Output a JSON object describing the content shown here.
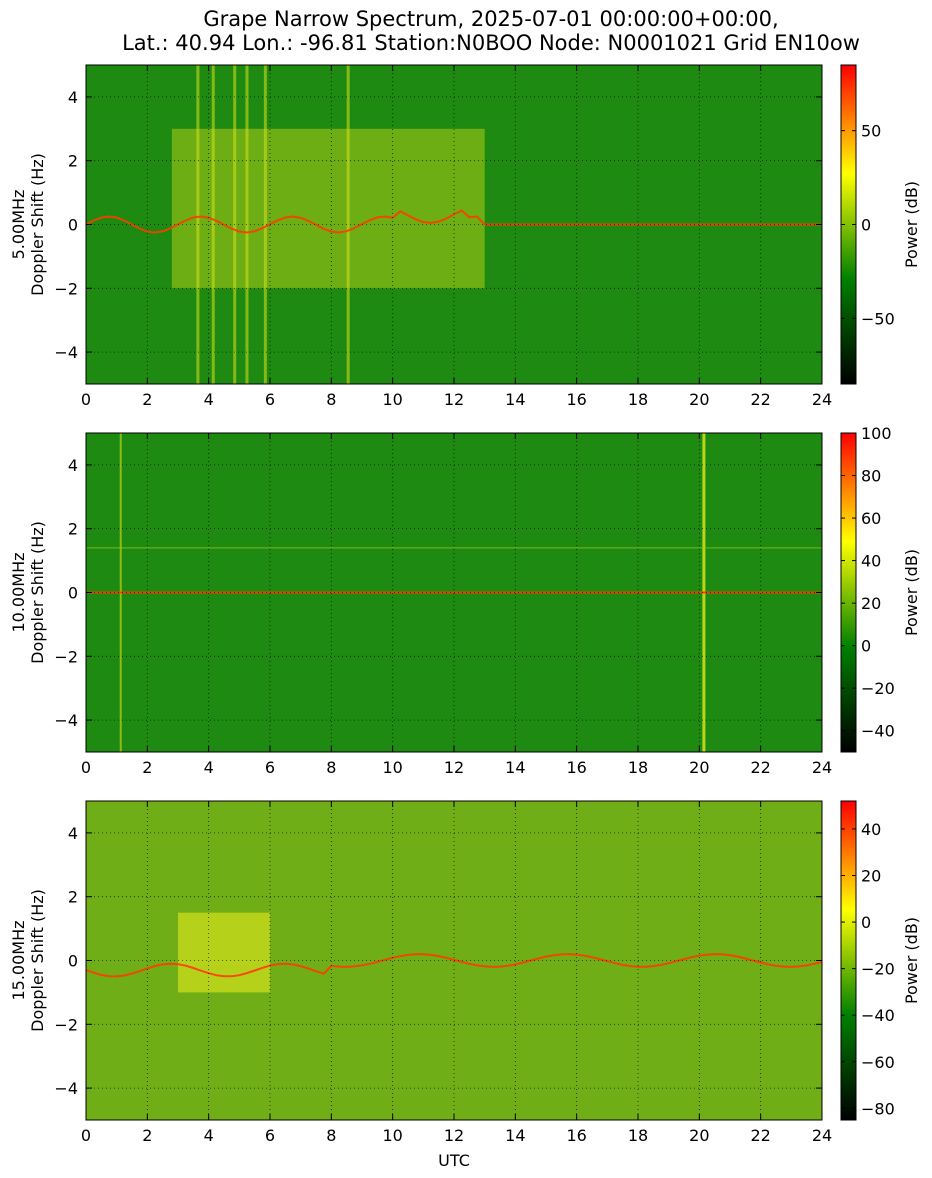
{
  "figure": {
    "title_line1": "Grape Narrow Spectrum, 2025-07-01 00:00:00+00:00,",
    "title_line2": "Lat.: 40.94 Lon.: -96.81 Station:N0BOO Node: N0001021 Grid EN10ow",
    "xlabel": "UTC",
    "colormap": [
      "#000000",
      "#008000",
      "#ffff00",
      "#ff0000"
    ]
  },
  "chart_data": [
    {
      "type": "heatmap",
      "frequency_label": "5.00MHz",
      "ylabel": "Doppler Shift (Hz)",
      "colorbar_label": "Power (dB)",
      "xlim": [
        0,
        24
      ],
      "ylim": [
        -5,
        5
      ],
      "x_ticks": [
        0,
        2,
        4,
        6,
        8,
        10,
        12,
        14,
        16,
        18,
        20,
        22,
        24
      ],
      "y_ticks": [
        -4,
        -2,
        0,
        2,
        4
      ],
      "color_range": [
        -85,
        85
      ],
      "colorbar_ticks": [
        -50,
        0,
        50
      ],
      "x_ticks_label": [
        "0",
        "2",
        "4",
        "6",
        "8",
        "10",
        "12",
        "14",
        "16",
        "18",
        "20",
        "22",
        "24"
      ],
      "y_ticks_label": [
        "−4",
        "−2",
        "0",
        "2",
        "4"
      ],
      "colorbar_ticks_label": [
        "−50",
        "0",
        "50"
      ],
      "grid": true
    },
    {
      "type": "heatmap",
      "frequency_label": "10.00MHz",
      "ylabel": "Doppler Shift (Hz)",
      "colorbar_label": "Power (dB)",
      "xlim": [
        0,
        24
      ],
      "ylim": [
        -5,
        5
      ],
      "x_ticks": [
        0,
        2,
        4,
        6,
        8,
        10,
        12,
        14,
        16,
        18,
        20,
        22,
        24
      ],
      "y_ticks": [
        -4,
        -2,
        0,
        2,
        4
      ],
      "color_range": [
        -50,
        100
      ],
      "colorbar_ticks": [
        -40,
        -20,
        0,
        20,
        40,
        60,
        80,
        100
      ],
      "x_ticks_label": [
        "0",
        "2",
        "4",
        "6",
        "8",
        "10",
        "12",
        "14",
        "16",
        "18",
        "20",
        "22",
        "24"
      ],
      "y_ticks_label": [
        "−4",
        "−2",
        "0",
        "2",
        "4"
      ],
      "colorbar_ticks_label": [
        "−40",
        "−20",
        "0",
        "20",
        "40",
        "60",
        "80",
        "100"
      ],
      "grid": true
    },
    {
      "type": "heatmap",
      "frequency_label": "15.00MHz",
      "ylabel": "Doppler Shift (Hz)",
      "colorbar_label": "Power (dB)",
      "xlim": [
        0,
        24
      ],
      "ylim": [
        -5,
        5
      ],
      "x_ticks": [
        0,
        2,
        4,
        6,
        8,
        10,
        12,
        14,
        16,
        18,
        20,
        22,
        24
      ],
      "y_ticks": [
        -4,
        -2,
        0,
        2,
        4
      ],
      "color_range": [
        -85,
        52
      ],
      "colorbar_ticks": [
        -80,
        -60,
        -40,
        -20,
        0,
        20,
        40
      ],
      "x_ticks_label": [
        "0",
        "2",
        "4",
        "6",
        "8",
        "10",
        "12",
        "14",
        "16",
        "18",
        "20",
        "22",
        "24"
      ],
      "y_ticks_label": [
        "−4",
        "−2",
        "0",
        "2",
        "4"
      ],
      "colorbar_ticks_label": [
        "−80",
        "−60",
        "−40",
        "−20",
        "0",
        "20",
        "40"
      ],
      "grid": true
    }
  ]
}
